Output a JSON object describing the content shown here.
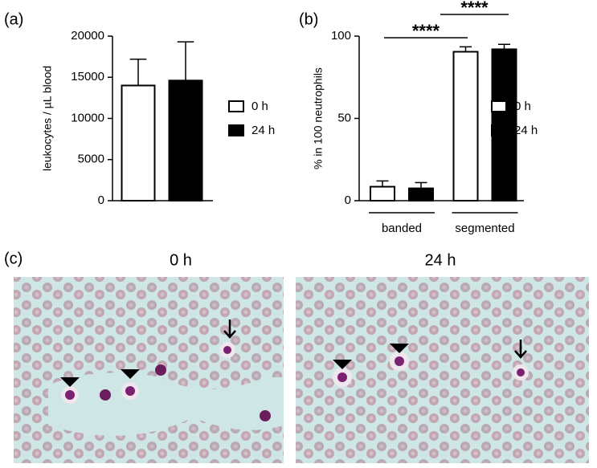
{
  "chart_data": [
    {
      "type": "bar",
      "ylabel": "leukocytes / µL blood",
      "categories": [
        null
      ],
      "series": [
        {
          "name": "0 h",
          "color": "#ffffff",
          "values": [
            14000
          ],
          "errors": [
            3200
          ]
        },
        {
          "name": "24 h",
          "color": "#000000",
          "values": [
            14600
          ],
          "errors": [
            4700
          ]
        }
      ],
      "ylim": [
        0,
        20000
      ],
      "yticks": [
        0,
        5000,
        10000,
        15000,
        20000
      ],
      "legend": "right"
    },
    {
      "type": "bar",
      "ylabel": "% in 100 neutrophils",
      "categories": [
        "banded",
        "segmented"
      ],
      "series": [
        {
          "name": "0 h",
          "color": "#ffffff",
          "values": [
            8.5,
            90.5
          ],
          "errors": [
            3.5,
            3
          ]
        },
        {
          "name": "24 h",
          "color": "#000000",
          "values": [
            7.5,
            92
          ],
          "errors": [
            3.5,
            3
          ]
        }
      ],
      "ylim": [
        0,
        100
      ],
      "yticks": [
        0,
        50,
        100
      ],
      "legend": "right",
      "annotations": [
        "****",
        "****"
      ]
    }
  ],
  "panels": {
    "labels": [
      "(a)",
      "(b)",
      "(c)"
    ],
    "images": [
      "0 h",
      "24 h"
    ]
  }
}
